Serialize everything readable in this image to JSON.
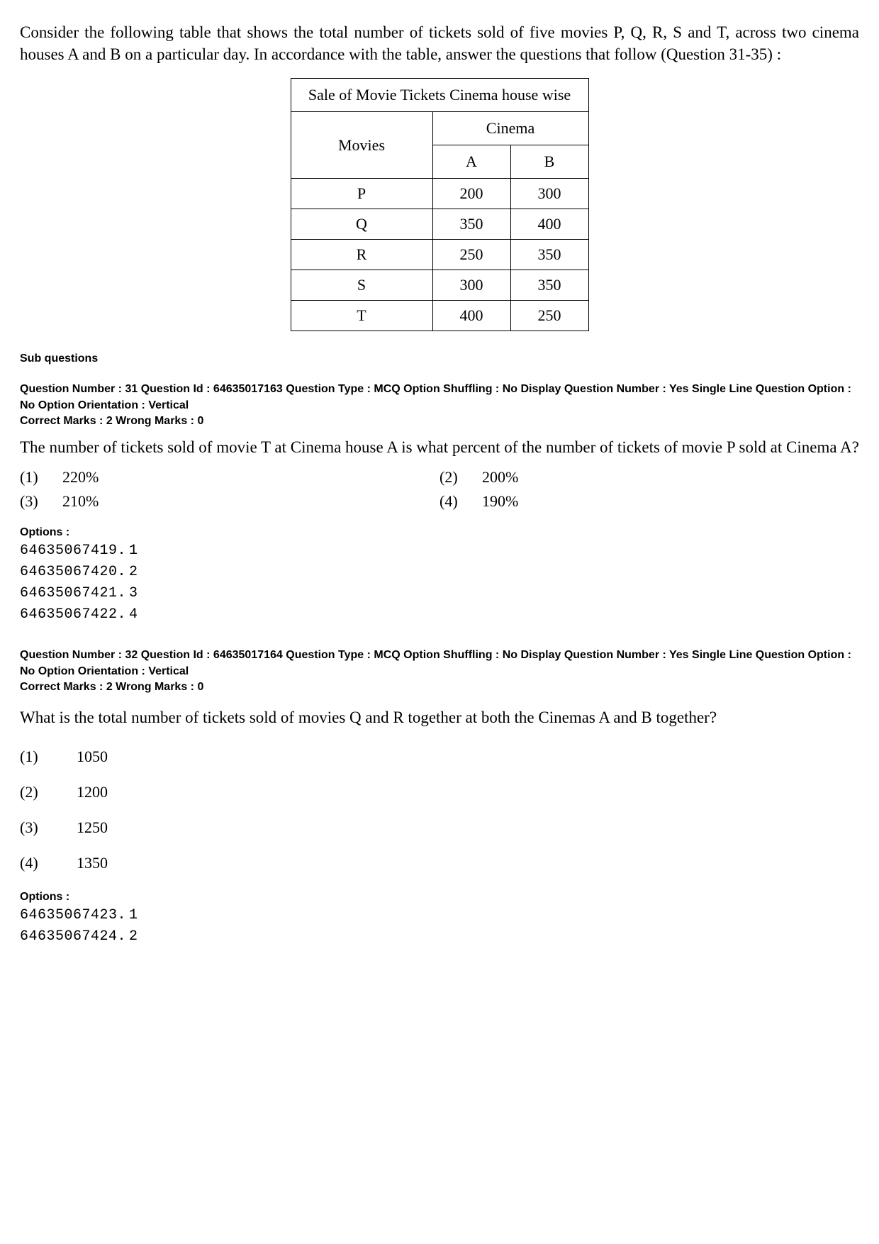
{
  "intro_text": "Consider the following table that shows the total number of tickets sold of five movies P, Q, R, S and T, across two cinema houses A and B on a particular day. In accordance with the table, answer the questions that follow (Question 31-35) :",
  "table": {
    "title": "Sale of Movie Tickets Cinema house wise",
    "row_header": "Movies",
    "group_header": "Cinema",
    "col_a": "A",
    "col_b": "B",
    "rows": [
      {
        "movie": "P",
        "a": "200",
        "b": "300"
      },
      {
        "movie": "Q",
        "a": "350",
        "b": "400"
      },
      {
        "movie": "R",
        "a": "250",
        "b": "350"
      },
      {
        "movie": "S",
        "a": "300",
        "b": "350"
      },
      {
        "movie": "T",
        "a": "400",
        "b": "250"
      }
    ]
  },
  "sub_questions_label": "Sub questions",
  "options_label": "Options :",
  "q31": {
    "meta": "Question Number : 31  Question Id : 64635017163  Question Type : MCQ  Option Shuffling : No  Display Question Number : Yes Single Line Question Option : No  Option Orientation : Vertical",
    "marks": "Correct Marks : 2  Wrong Marks : 0",
    "text": "The number of tickets sold of movie T at Cinema house A is what percent of the number of tickets of movie P sold at Cinema A?",
    "opts": [
      {
        "n": "(1)",
        "v": "220%"
      },
      {
        "n": "(2)",
        "v": "200%"
      },
      {
        "n": "(3)",
        "v": "210%"
      },
      {
        "n": "(4)",
        "v": "190%"
      }
    ],
    "ids": [
      {
        "id": "64635067419.",
        "s": "1"
      },
      {
        "id": "64635067420.",
        "s": "2"
      },
      {
        "id": "64635067421.",
        "s": "3"
      },
      {
        "id": "64635067422.",
        "s": "4"
      }
    ]
  },
  "q32": {
    "meta": "Question Number : 32  Question Id : 64635017164  Question Type : MCQ  Option Shuffling : No  Display Question Number : Yes Single Line Question Option : No  Option Orientation : Vertical",
    "marks": "Correct Marks : 2  Wrong Marks : 0",
    "text": "What is the total number of tickets sold of movies Q and R together at both the Cinemas A and B together?",
    "opts": [
      {
        "n": "(1)",
        "v": "1050"
      },
      {
        "n": "(2)",
        "v": "1200"
      },
      {
        "n": "(3)",
        "v": "1250"
      },
      {
        "n": "(4)",
        "v": "1350"
      }
    ],
    "ids": [
      {
        "id": "64635067423.",
        "s": "1"
      },
      {
        "id": "64635067424.",
        "s": "2"
      }
    ]
  }
}
